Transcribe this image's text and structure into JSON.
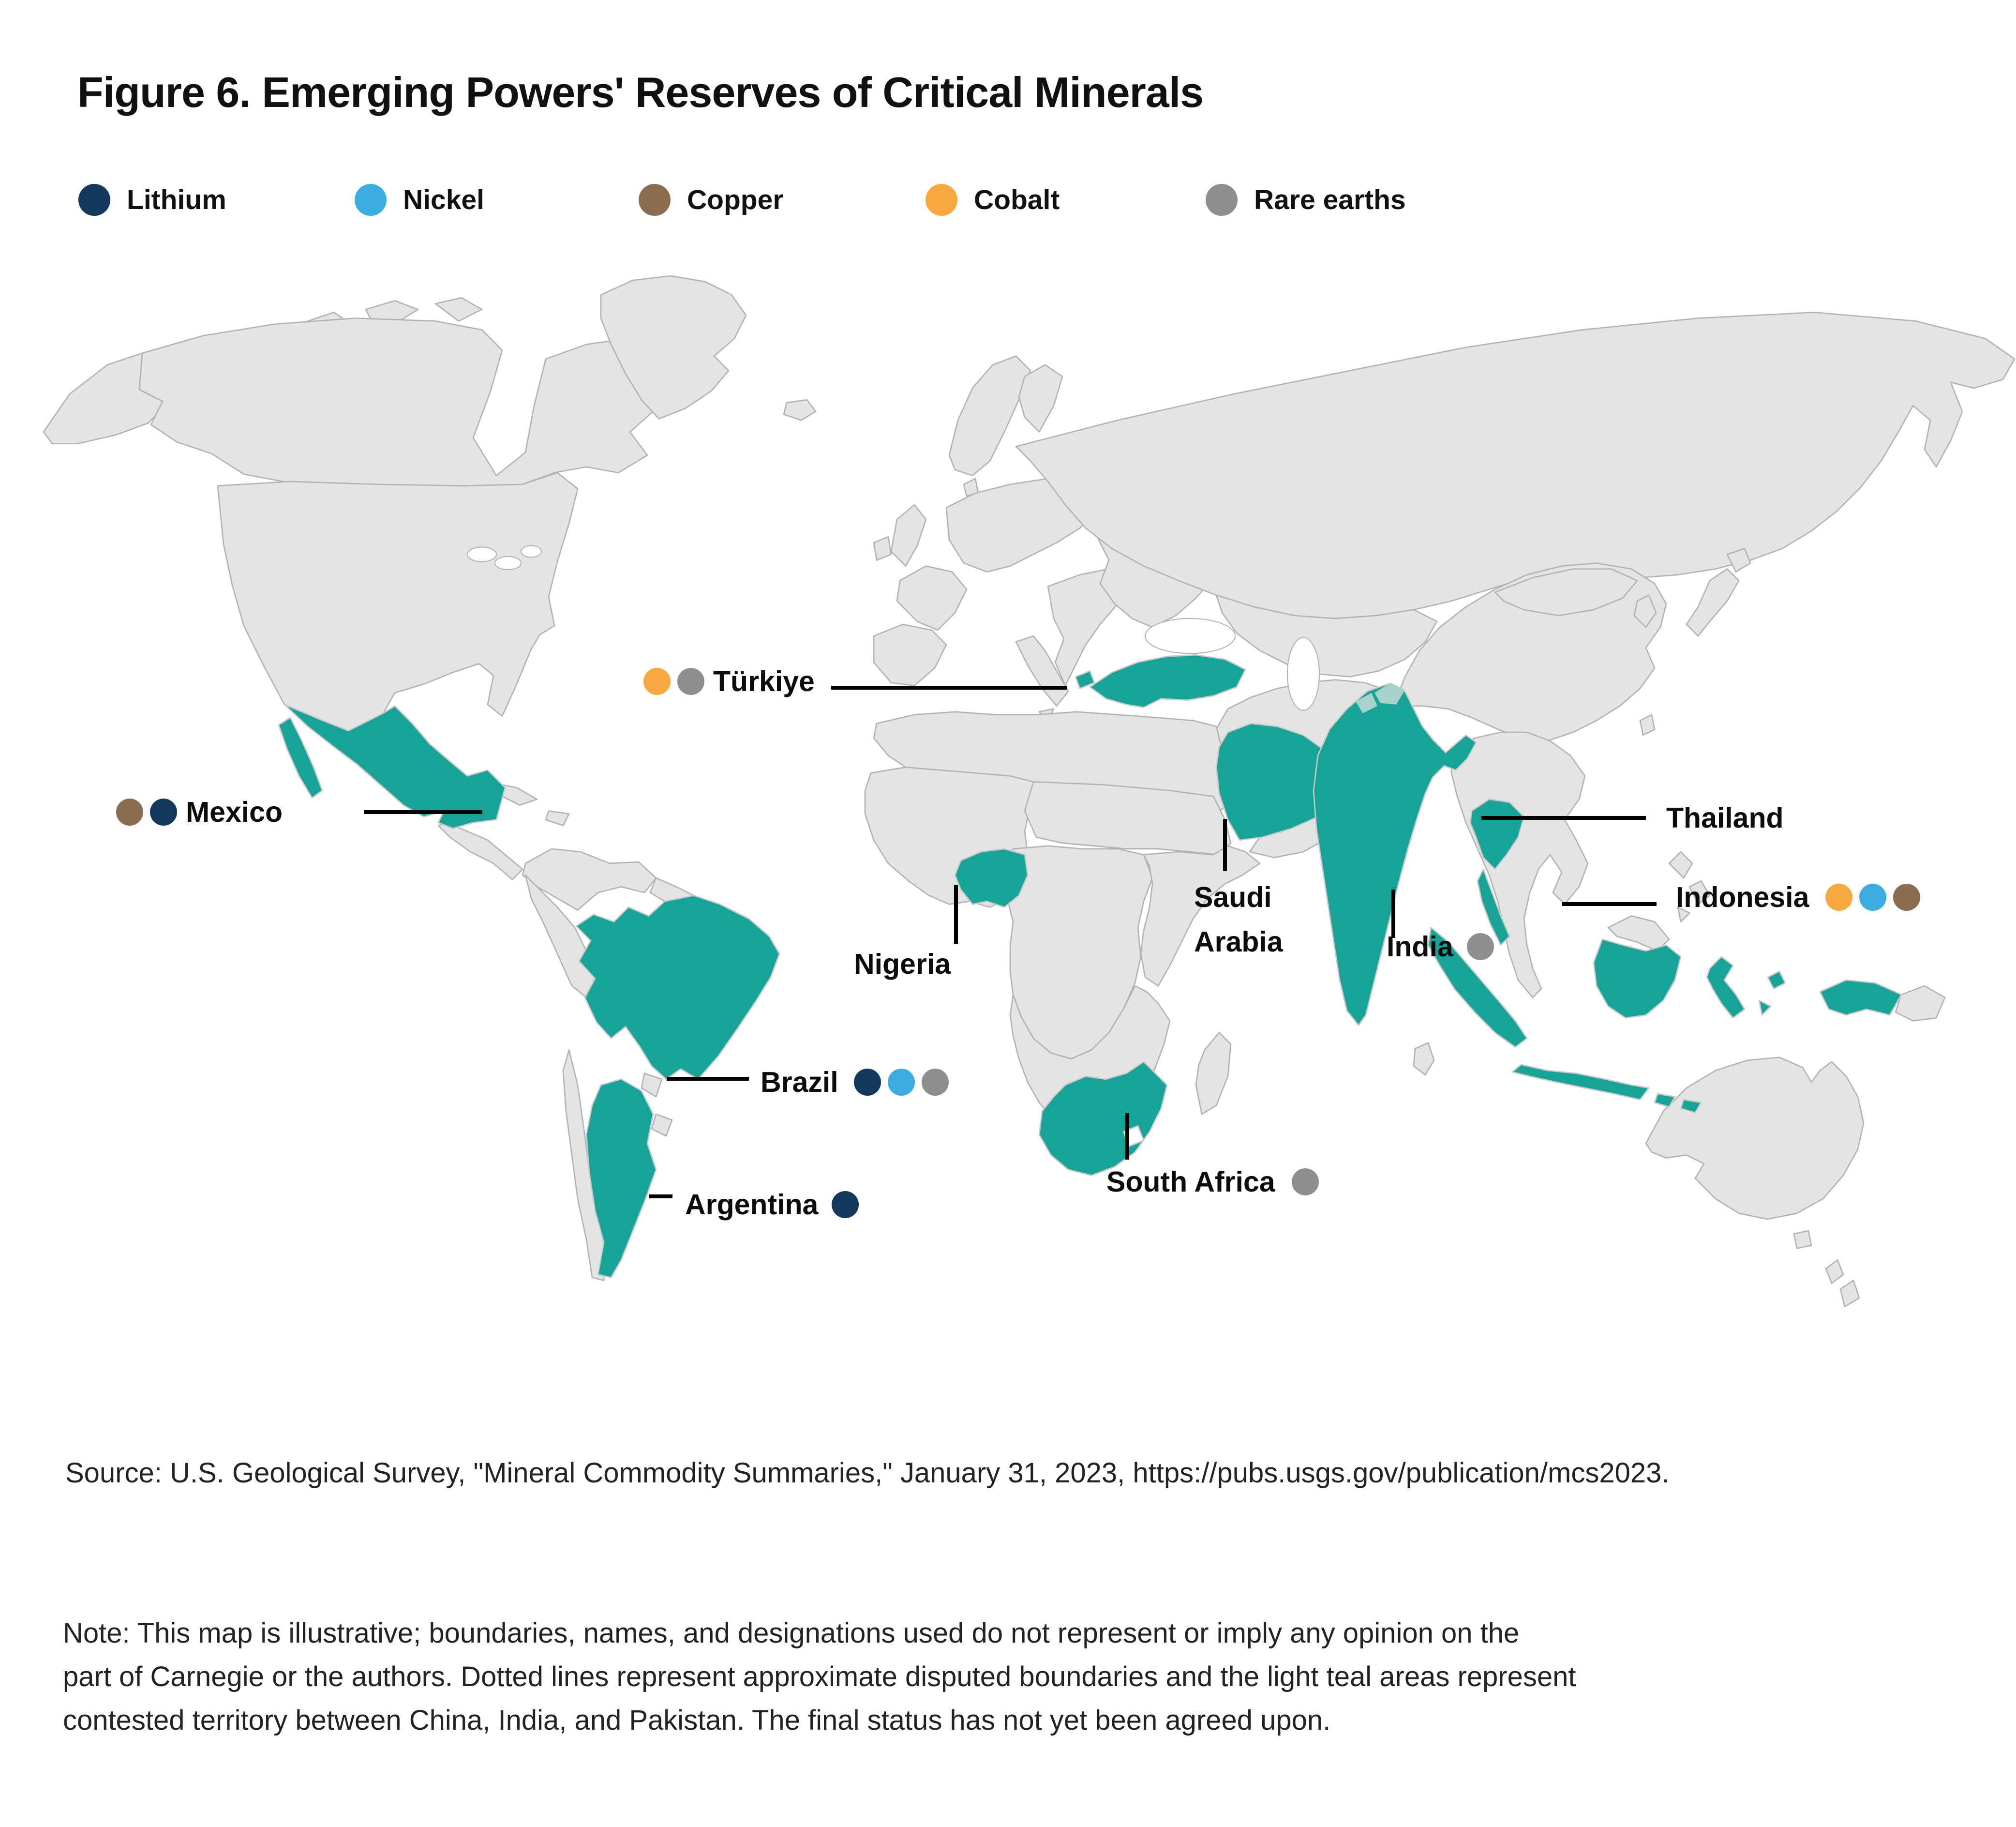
{
  "title": "Figure 6. Emerging Powers' Reserves of Critical Minerals",
  "legend": {
    "colors": {
      "Lithium": "#12395B",
      "Nickel": "#3BADE2",
      "Copper": "#8A6D51",
      "Cobalt": "#F6A93E",
      "Rare earths": "#8E8E8E"
    },
    "items": [
      {
        "label": "Lithium"
      },
      {
        "label": "Nickel"
      },
      {
        "label": "Copper"
      },
      {
        "label": "Cobalt"
      },
      {
        "label": "Rare earths"
      }
    ]
  },
  "map": {
    "colors": {
      "land": "#e4e4e4",
      "border": "#b3b3b3",
      "highlight": "#17a398",
      "contested": "#a7d2cb"
    },
    "countries": [
      {
        "name": "Türkiye",
        "minerals": [
          "Cobalt",
          "Rare earths"
        ]
      },
      {
        "name": "Mexico",
        "minerals": [
          "Copper",
          "Lithium"
        ]
      },
      {
        "name": "Brazil",
        "minerals": [
          "Lithium",
          "Nickel",
          "Rare earths"
        ]
      },
      {
        "name": "Argentina",
        "minerals": [
          "Lithium"
        ]
      },
      {
        "name": "Nigeria",
        "minerals": []
      },
      {
        "name": "Saudi",
        "minerals": []
      },
      {
        "name": "Arabia",
        "minerals": []
      },
      {
        "name": "India",
        "minerals": [
          "Rare earths"
        ]
      },
      {
        "name": "Thailand",
        "minerals": []
      },
      {
        "name": "Indonesia",
        "minerals": [
          "Cobalt",
          "Nickel",
          "Copper"
        ]
      },
      {
        "name": "South Africa",
        "minerals": [
          "Rare earths"
        ]
      }
    ]
  },
  "source": "Source: U.S. Geological Survey, \"Mineral Commodity Summaries,\" January 31, 2023, https://pubs.usgs.gov/publication/mcs2023.",
  "note": {
    "lines": [
      "Note: This map is illustrative; boundaries, names, and designations used do not represent or imply any opinion on the",
      "part of Carnegie or the authors. Dotted lines represent approximate disputed boundaries and the light teal areas represent",
      "contested territory between China, India, and Pakistan. The final status has not yet been agreed upon."
    ]
  }
}
